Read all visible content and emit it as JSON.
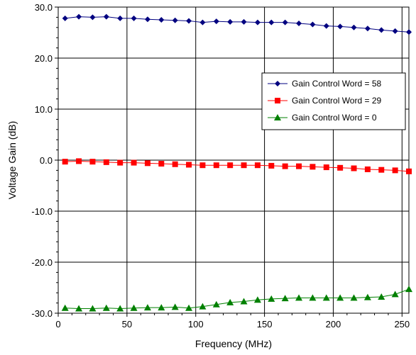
{
  "chart_data": {
    "type": "line",
    "title": "",
    "xlabel": "Frequency (MHz)",
    "ylabel": "Voltage Gain (dB)",
    "xlim": [
      0,
      255
    ],
    "ylim": [
      -30,
      30
    ],
    "x_ticks": [
      0,
      50,
      100,
      150,
      200,
      250
    ],
    "y_ticks": [
      -30,
      -20,
      -10,
      0,
      10,
      20,
      30
    ],
    "x_tick_labels": [
      "0",
      "50",
      "100",
      "150",
      "200",
      "250"
    ],
    "y_tick_labels": [
      "-30.0",
      "-20.0",
      "-10.0",
      "0.0",
      "10.0",
      "20.0",
      "30.0"
    ],
    "grid": true,
    "legend_position": "right",
    "x": [
      5,
      15,
      25,
      35,
      45,
      55,
      65,
      75,
      85,
      95,
      105,
      115,
      125,
      135,
      145,
      155,
      165,
      175,
      185,
      195,
      205,
      215,
      225,
      235,
      245,
      255
    ],
    "series": [
      {
        "name": "Gain Control Word = 58",
        "color": "#000080",
        "marker": "diamond",
        "values": [
          27.8,
          28.1,
          28.0,
          28.1,
          27.8,
          27.8,
          27.6,
          27.5,
          27.4,
          27.3,
          27.0,
          27.2,
          27.1,
          27.1,
          27.0,
          27.0,
          27.0,
          26.8,
          26.6,
          26.3,
          26.2,
          26.0,
          25.8,
          25.5,
          25.3,
          25.1
        ]
      },
      {
        "name": "Gain Control Word = 29",
        "color": "#ff0000",
        "marker": "square",
        "values": [
          -0.3,
          -0.2,
          -0.3,
          -0.4,
          -0.5,
          -0.5,
          -0.6,
          -0.7,
          -0.8,
          -0.9,
          -1.0,
          -1.0,
          -1.0,
          -1.0,
          -1.0,
          -1.1,
          -1.2,
          -1.2,
          -1.3,
          -1.4,
          -1.5,
          -1.6,
          -1.8,
          -1.9,
          -2.0,
          -2.2
        ]
      },
      {
        "name": "Gain Control Word = 0",
        "color": "#008000",
        "marker": "triangle",
        "values": [
          -29.0,
          -29.1,
          -29.1,
          -29.0,
          -29.1,
          -29.0,
          -28.9,
          -28.9,
          -28.8,
          -29.0,
          -28.7,
          -28.3,
          -27.9,
          -27.7,
          -27.4,
          -27.2,
          -27.1,
          -27.0,
          -27.0,
          -27.0,
          -27.0,
          -27.0,
          -26.9,
          -26.8,
          -26.3,
          -25.3
        ]
      }
    ]
  }
}
